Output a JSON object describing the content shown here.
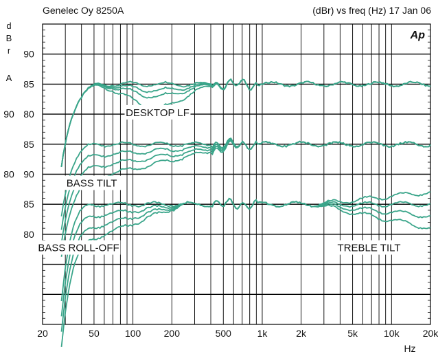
{
  "chart_data": {
    "type": "line",
    "title_left": "Genelec Oy 8250A",
    "title_right": "(dBr) vs freq (Hz) 17 Jan 06",
    "logo": "Ap",
    "ylabel_letters": [
      "d",
      "B",
      "r",
      "A"
    ],
    "xlabel": "Hz",
    "x_scale": "log",
    "xlim": [
      20,
      20000
    ],
    "x_ticks": [
      {
        "v": 20,
        "label": "20"
      },
      {
        "v": 50,
        "label": "50"
      },
      {
        "v": 100,
        "label": "100"
      },
      {
        "v": 200,
        "label": "200"
      },
      {
        "v": 500,
        "label": "500"
      },
      {
        "v": 1000,
        "label": "1k"
      },
      {
        "v": 2000,
        "label": "2k"
      },
      {
        "v": 5000,
        "label": "5k"
      },
      {
        "v": 10000,
        "label": "10k"
      },
      {
        "v": 20000,
        "label": "20k"
      }
    ],
    "y_tick_labels": [
      {
        "row": 1,
        "label": "90"
      },
      {
        "row": 2,
        "label": "85"
      },
      {
        "row": 3,
        "label": "80"
      },
      {
        "row": 3,
        "label": "90",
        "left": true
      },
      {
        "row": 4,
        "label": "85"
      },
      {
        "row": 5,
        "label": "90"
      },
      {
        "row": 5,
        "label": "80",
        "left": true
      },
      {
        "row": 6,
        "label": "85"
      },
      {
        "row": 7,
        "label": "80"
      }
    ],
    "grid_rows": 10,
    "grid": true,
    "line_color": "#3aa58a",
    "annotations": [
      {
        "text": "DESKTOP LF",
        "freq": 155,
        "row": 2.95
      },
      {
        "text": "BASS TILT",
        "freq": 48,
        "row": 5.3
      },
      {
        "text": "BASS ROLL-OFF",
        "freq": 38,
        "row": 7.45
      },
      {
        "text": "TREBLE TILT",
        "freq": 6700,
        "row": 7.45
      }
    ],
    "groups": [
      {
        "name": "DESKTOP LF",
        "center": 85,
        "curves": [
          {
            "low": "flat",
            "mid": 0,
            "treble": 0
          },
          {
            "low": "flat",
            "mid": -1,
            "treble": 0
          },
          {
            "low": "flat",
            "mid": -2,
            "treble": 0
          },
          {
            "low": "flat",
            "mid": -4,
            "treble": 0
          }
        ]
      },
      {
        "name": "BASS TILT",
        "center": 85,
        "curves": [
          {
            "low": "tilt",
            "mid": 0,
            "treble": 0
          },
          {
            "low": "tilt",
            "mid": -2,
            "treble": 0
          },
          {
            "low": "tilt",
            "mid": -4,
            "treble": 0
          },
          {
            "low": "tilt",
            "mid": -6,
            "treble": 0
          }
        ]
      },
      {
        "name": "BASS ROLL-OFF / TREBLE TILT",
        "center": 85,
        "curves": [
          {
            "low": "rolloff",
            "mid": 0,
            "treble": 2
          },
          {
            "low": "rolloff",
            "mid": -2,
            "treble": 0
          },
          {
            "low": "rolloff",
            "mid": -4,
            "treble": -2
          },
          {
            "low": "rolloff",
            "mid": -6,
            "treble": -4
          }
        ]
      }
    ]
  }
}
